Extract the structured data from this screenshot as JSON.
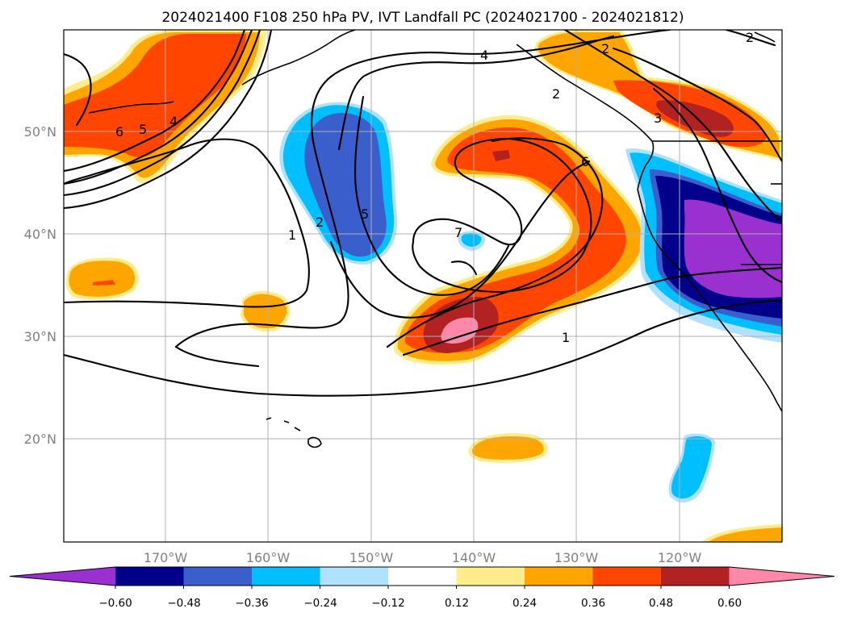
{
  "title": "2024021400 F108 250 hPa PV, IVT Landfall PC (2024021700 - 2024021812)",
  "map": {
    "lon_ticks": [
      "170°W",
      "160°W",
      "150°W",
      "140°W",
      "130°W",
      "120°W"
    ],
    "lat_ticks": [
      "50°N",
      "40°N",
      "30°N",
      "20°N"
    ],
    "lon_range": [
      -180,
      -110
    ],
    "lat_range": [
      10,
      60
    ],
    "grid": true,
    "contour_labels": [
      "6",
      "5",
      "4",
      "2",
      "1",
      "5",
      "4",
      "2",
      "2",
      "3",
      "6",
      "7",
      "1",
      "2"
    ]
  },
  "colorbar": {
    "extend": "both",
    "labels": [
      "−0.60",
      "−0.48",
      "−0.36",
      "−0.24",
      "−0.12",
      "0.12",
      "0.24",
      "0.36",
      "0.48",
      "0.60"
    ],
    "colors": [
      "#9b30d0",
      "#00008b",
      "#3a5fcd",
      "#00bfff",
      "#b0e2ff",
      "#ffffff",
      "#ffec8b",
      "#ffa500",
      "#ff4500",
      "#b22222",
      "#ff88aa"
    ]
  }
}
